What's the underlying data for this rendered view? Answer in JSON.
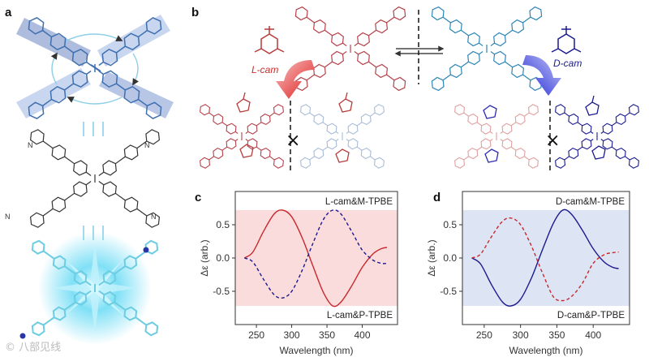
{
  "panels": {
    "a": "a",
    "b": "b",
    "c": "c",
    "d": "d"
  },
  "scheme": {
    "l_cam": "L-cam",
    "d_cam": "D-cam",
    "not_mirror": "×"
  },
  "watermark": "© 八部见线",
  "colors": {
    "red": "#c8282d",
    "blue": "#1b1a8f",
    "teal_blue": "#2e7fb0",
    "pink_band": "#fbdcdc",
    "blue_band": "#dde4f3"
  },
  "chart_data": [
    {
      "type": "line",
      "panel": "c",
      "xlabel": "Wavelength (nm)",
      "ylabel": "Δε (arb.)",
      "xlim": [
        220,
        450
      ],
      "ylim": [
        -1.0,
        1.0
      ],
      "xticks": [
        250,
        300,
        350,
        400
      ],
      "yticks": [
        "0.5",
        "0.0",
        "-0.5"
      ],
      "band": [
        -0.72,
        0.72
      ],
      "annotations": {
        "top": "L-cam&M-TPBE",
        "bottom": "L-cam&P-TPBE"
      },
      "series": [
        {
          "style": "solid",
          "color": "#c8282d",
          "x": [
            233,
            245,
            260,
            275,
            287,
            300,
            315,
            330,
            345,
            358,
            370,
            385,
            400,
            415,
            427,
            435
          ],
          "y": [
            0.0,
            0.09,
            0.4,
            0.66,
            0.72,
            0.62,
            0.3,
            -0.12,
            -0.52,
            -0.72,
            -0.66,
            -0.42,
            -0.14,
            0.06,
            0.14,
            0.16
          ]
        },
        {
          "style": "dashed",
          "color": "#1b1a8f",
          "x": [
            233,
            245,
            260,
            275,
            287,
            300,
            315,
            330,
            345,
            358,
            370,
            385,
            400,
            415,
            427,
            435
          ],
          "y": [
            0.0,
            -0.06,
            -0.32,
            -0.55,
            -0.6,
            -0.5,
            -0.18,
            0.22,
            0.58,
            0.72,
            0.66,
            0.4,
            0.12,
            -0.03,
            -0.08,
            -0.08
          ]
        }
      ]
    },
    {
      "type": "line",
      "panel": "d",
      "xlabel": "Wavelength (nm)",
      "ylabel": "Δε (arb.)",
      "xlim": [
        220,
        450
      ],
      "ylim": [
        -1.0,
        1.0
      ],
      "xticks": [
        250,
        300,
        350,
        400
      ],
      "yticks": [
        "0.5",
        "0.0",
        "-0.5"
      ],
      "band": [
        -0.72,
        0.72
      ],
      "annotations": {
        "top": "D-cam&M-TPBE",
        "bottom": "D-cam&P-TPBE"
      },
      "series": [
        {
          "style": "solid",
          "color": "#1b1a8f",
          "x": [
            233,
            245,
            260,
            275,
            287,
            300,
            315,
            330,
            345,
            358,
            370,
            385,
            400,
            415,
            427,
            435
          ],
          "y": [
            0.0,
            -0.09,
            -0.4,
            -0.66,
            -0.72,
            -0.62,
            -0.3,
            0.12,
            0.52,
            0.72,
            0.66,
            0.42,
            0.14,
            -0.06,
            -0.14,
            -0.16
          ]
        },
        {
          "style": "dashed",
          "color": "#c8282d",
          "x": [
            233,
            245,
            260,
            275,
            287,
            300,
            315,
            330,
            345,
            358,
            370,
            385,
            400,
            415,
            427,
            435
          ],
          "y": [
            0.0,
            0.06,
            0.32,
            0.55,
            0.6,
            0.5,
            0.18,
            -0.22,
            -0.58,
            -0.64,
            -0.58,
            -0.38,
            -0.08,
            0.05,
            0.08,
            0.09
          ]
        }
      ]
    }
  ]
}
